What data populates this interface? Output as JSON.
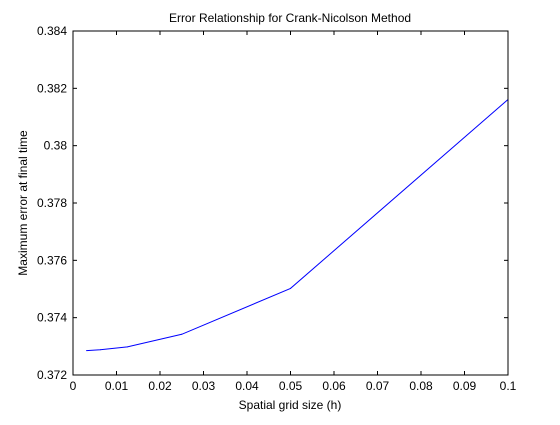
{
  "chart_data": {
    "type": "line",
    "title": "Error Relationship for Crank-Nicolson Method",
    "xlabel": "Spatial grid size (h)",
    "ylabel": "Maximum error at final time",
    "xlim": [
      0,
      0.1
    ],
    "ylim": [
      0.372,
      0.384
    ],
    "x_ticks": [
      0,
      0.01,
      0.02,
      0.03,
      0.04,
      0.05,
      0.06,
      0.07,
      0.08,
      0.09,
      0.1
    ],
    "x_tick_labels": [
      "0",
      "0.01",
      "0.02",
      "0.03",
      "0.04",
      "0.05",
      "0.06",
      "0.07",
      "0.08",
      "0.09",
      "0.1"
    ],
    "y_ticks": [
      0.372,
      0.374,
      0.376,
      0.378,
      0.38,
      0.382,
      0.384
    ],
    "y_tick_labels": [
      "0.372",
      "0.374",
      "0.376",
      "0.378",
      "0.38",
      "0.382",
      "0.384"
    ],
    "grid": false,
    "series": [
      {
        "color": "#0000ff",
        "x": [
          0.003125,
          0.00625,
          0.0125,
          0.025,
          0.05,
          0.1
        ],
        "y": [
          0.37285,
          0.37288,
          0.37298,
          0.37342,
          0.37502,
          0.38161
        ]
      }
    ]
  }
}
